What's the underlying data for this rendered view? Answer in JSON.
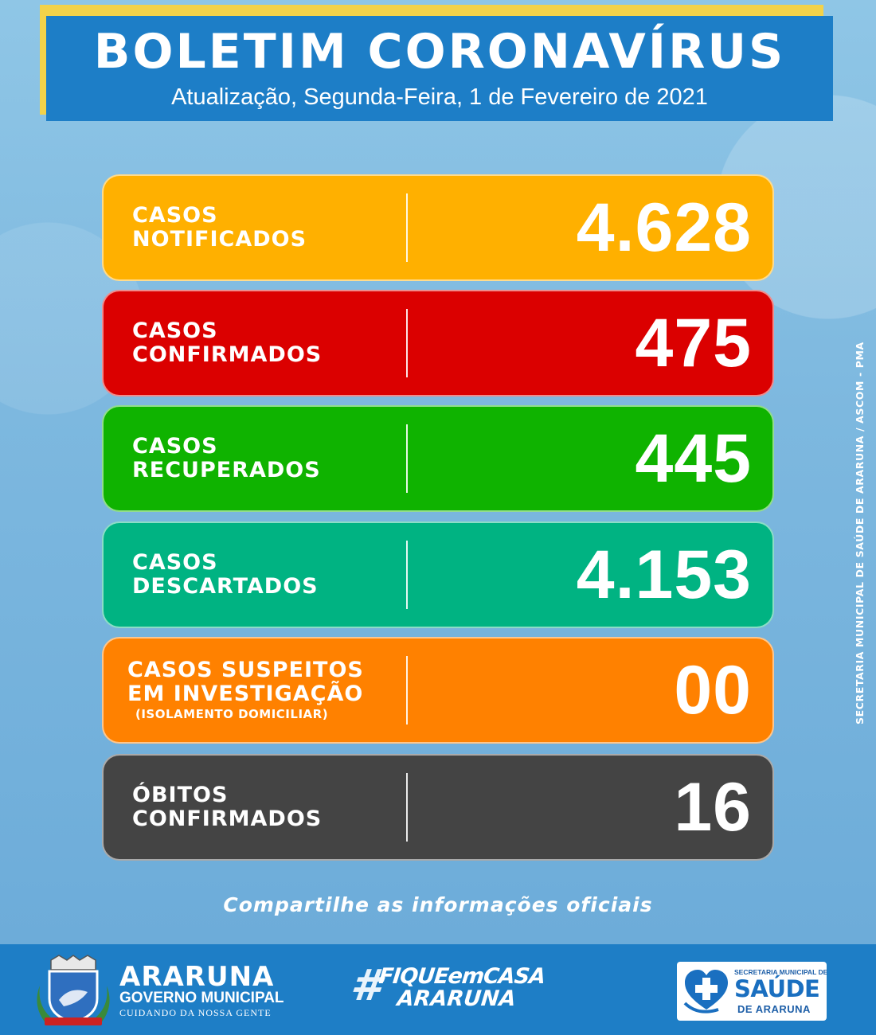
{
  "header": {
    "title": "BOLETIM CORONAVÍRUS",
    "subtitle": "Atualização, Segunda-Feira, 1 de Fevereiro de 2021"
  },
  "stats": [
    {
      "line1": "CASOS",
      "line2": "NOTIFICADOS",
      "note": "",
      "value": "4.628",
      "color": "#ffb000"
    },
    {
      "line1": "CASOS",
      "line2": "CONFIRMADOS",
      "note": "",
      "value": "475",
      "color": "#db0000"
    },
    {
      "line1": "CASOS",
      "line2": "RECUPERADOS",
      "note": "",
      "value": "445",
      "color": "#0fb300"
    },
    {
      "line1": "CASOS",
      "line2": "DESCARTADOS",
      "note": "",
      "value": "4.153",
      "color": "#00b382"
    },
    {
      "line1": "CASOS SUSPEITOS",
      "line2": "EM INVESTIGAÇÃO",
      "note": "(ISOLAMENTO DOMICILIAR)",
      "value": "00",
      "color": "#ff8100"
    },
    {
      "line1": "ÓBITOS",
      "line2": "CONFIRMADOS",
      "note": "",
      "value": "16",
      "color": "#444444"
    }
  ],
  "share_text": "Compartilhe as informações oficiais",
  "side_credit": "SECRETARIA MUNICIPAL DE SAÚDE DE ARARUNA / ASCOM - PMA",
  "footer": {
    "araruna_name": "ARARUNA",
    "araruna_gov": "GOVERNO MUNICIPAL",
    "araruna_slogan": "CUIDANDO DA NOSSA GENTE",
    "hashtag_symbol": "#",
    "hashtag_line1": "FIQUEemCASA",
    "hashtag_line2": "ARARUNA",
    "saude_small": "SECRETARIA MUNICIPAL DE",
    "saude_big": "SAÚDE",
    "saude_de": "DE ARARUNA"
  },
  "colors": {
    "header_blue": "#1d7ec7",
    "header_accent": "#f3d24a",
    "footer_blue": "#1e7ec6"
  }
}
